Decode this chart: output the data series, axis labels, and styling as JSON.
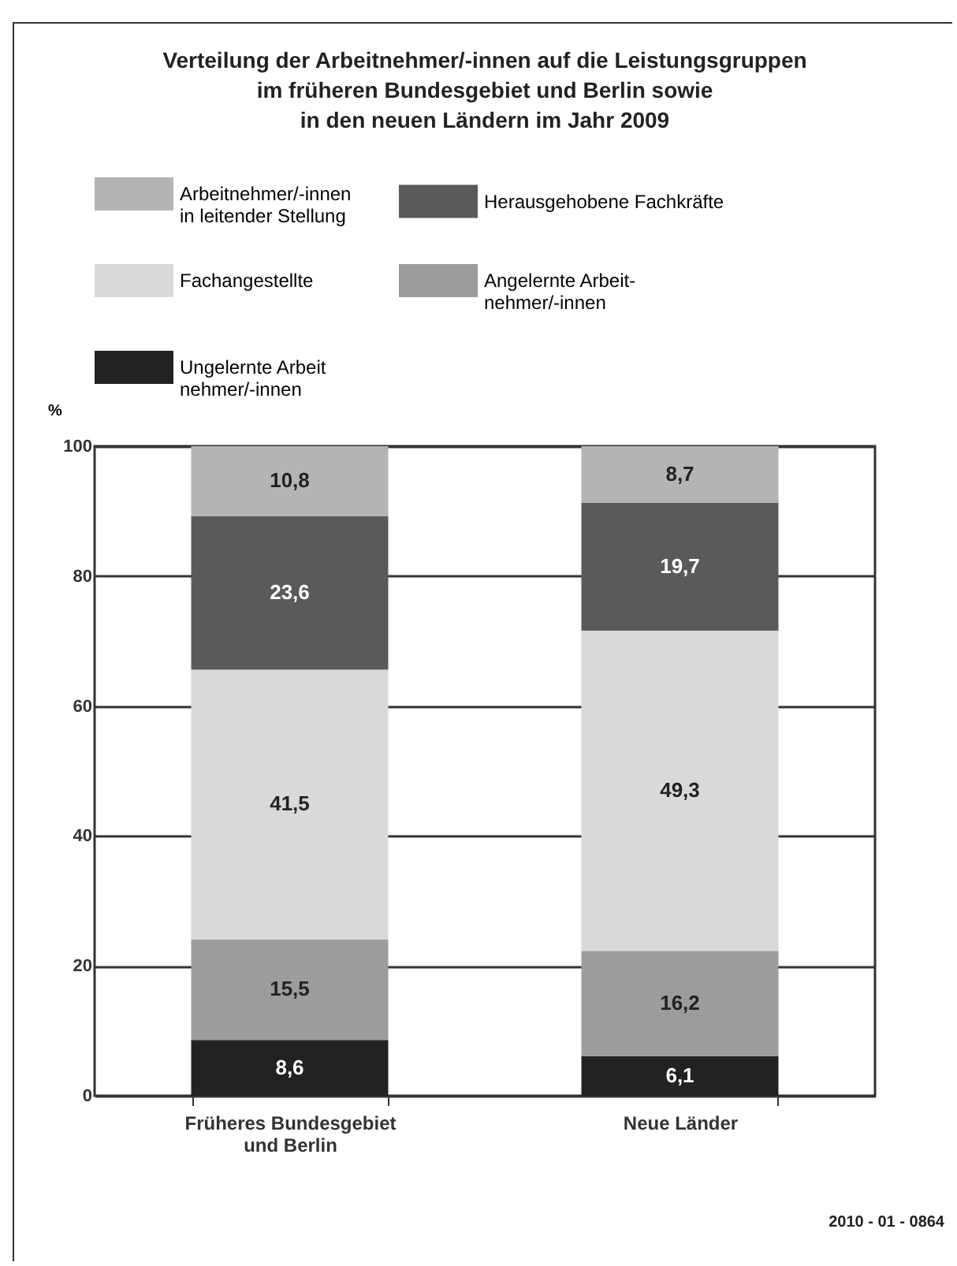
{
  "chart_data": {
    "type": "bar",
    "title": "Verteilung der Arbeitnehmer/-innen auf die Leistungsgruppen\nim früheren Bundesgebiet und Berlin sowie\nin den neuen Ländern im Jahr 2009",
    "categories": [
      "Früheres Bundesgebiet\nund Berlin",
      "Neue Länder"
    ],
    "series": [
      {
        "name": "Ungelernte Arbeit\nnehmer/-innen",
        "color": "#222222",
        "values": [
          8.6,
          6.1
        ],
        "value_labels": [
          "8,6",
          "6,1"
        ]
      },
      {
        "name": "Angelernte Arbeit-\nnehmer/-innen",
        "color": "#9c9c9c",
        "values": [
          15.5,
          16.2
        ],
        "value_labels": [
          "15,5",
          "16,2"
        ]
      },
      {
        "name": "Fachangestellte",
        "color": "#d9d9d9",
        "values": [
          41.5,
          49.3
        ],
        "value_labels": [
          "41,5",
          "49,3"
        ]
      },
      {
        "name": "Herausgehobene Fachkräfte",
        "color": "#5a5a5a",
        "values": [
          23.6,
          19.7
        ],
        "value_labels": [
          "23,6",
          "19,7"
        ]
      },
      {
        "name": "Arbeitnehmer/-innen\nin leitender Stellung",
        "color": "#b4b4b4",
        "values": [
          10.8,
          8.7
        ],
        "value_labels": [
          "10,8",
          "8,7"
        ]
      }
    ],
    "stacked": true,
    "ylabel": "%",
    "ylim": [
      0,
      100
    ],
    "yticks": [
      0,
      20,
      40,
      60,
      80,
      100
    ],
    "grid": "y",
    "legend": "top",
    "annotations": [
      "2010 - 01 - 0864"
    ]
  }
}
